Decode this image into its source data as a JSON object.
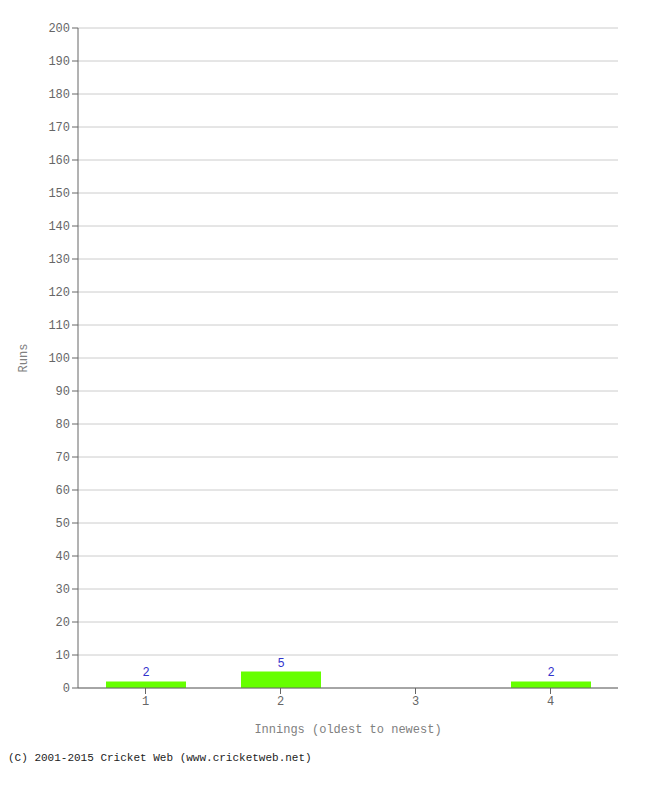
{
  "chart_data": {
    "type": "bar",
    "categories": [
      "1",
      "2",
      "3",
      "4"
    ],
    "values": [
      2,
      5,
      0,
      2
    ],
    "color": "#66ff00",
    "xlabel": "Innings (oldest to newest)",
    "ylabel": "Runs",
    "ylim": [
      0,
      200
    ],
    "yticks": [
      0,
      10,
      20,
      30,
      40,
      50,
      60,
      70,
      80,
      90,
      100,
      110,
      120,
      130,
      140,
      150,
      160,
      170,
      180,
      190,
      200
    ],
    "grid": true,
    "data_labels": true,
    "annotations": [
      "(C) 2001-2015 Cricket Web (www.cricketweb.net)"
    ]
  }
}
